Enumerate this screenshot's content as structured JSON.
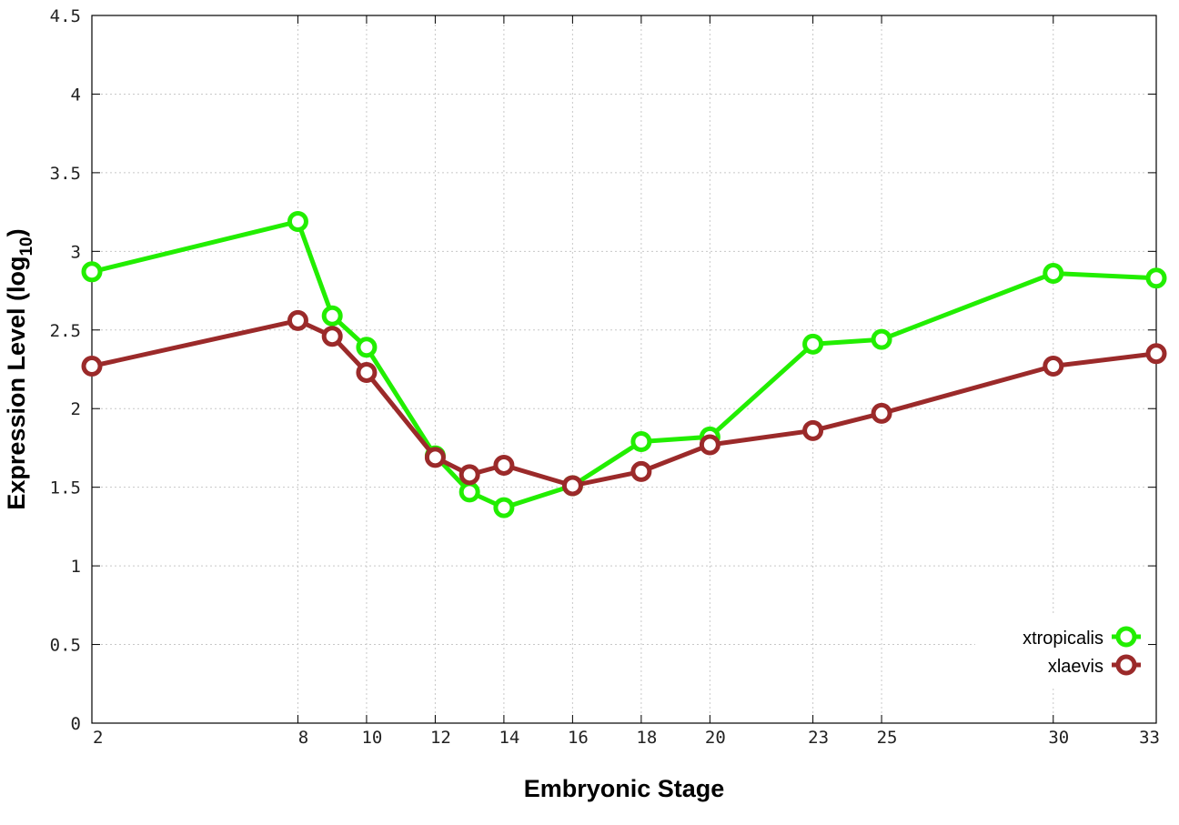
{
  "chart_data": {
    "type": "line",
    "xlabel": "Embryonic Stage",
    "ylabel_main": "Expression Level (log",
    "ylabel_sub": "10",
    "ylabel_close": ")",
    "xlim": [
      2,
      33
    ],
    "ylim": [
      0,
      4.5
    ],
    "x_ticks": [
      2,
      8,
      10,
      12,
      14,
      16,
      18,
      20,
      23,
      25,
      30,
      33
    ],
    "y_ticks": [
      0,
      0.5,
      1,
      1.5,
      2,
      2.5,
      3,
      3.5,
      4,
      4.5
    ],
    "y_tick_labels": [
      "0",
      "0.5",
      "1",
      "1.5",
      "2",
      "2.5",
      "3",
      "3.5",
      "4",
      "4.5"
    ],
    "grid": true,
    "legend_position": "bottom-right",
    "x": [
      2,
      8,
      9,
      10,
      12,
      13,
      14,
      16,
      18,
      20,
      23,
      25,
      30,
      33
    ],
    "series": [
      {
        "name": "xtropicalis",
        "color": "#22ee00",
        "values": [
          2.87,
          3.19,
          2.59,
          2.39,
          1.7,
          1.47,
          1.37,
          1.51,
          1.79,
          1.82,
          2.41,
          2.44,
          2.86,
          2.83
        ]
      },
      {
        "name": "xlaevis",
        "color": "#9b2a2a",
        "values": [
          2.27,
          2.56,
          2.46,
          2.23,
          1.69,
          1.58,
          1.64,
          1.51,
          1.6,
          1.77,
          1.86,
          1.97,
          2.27,
          2.35
        ]
      }
    ]
  }
}
